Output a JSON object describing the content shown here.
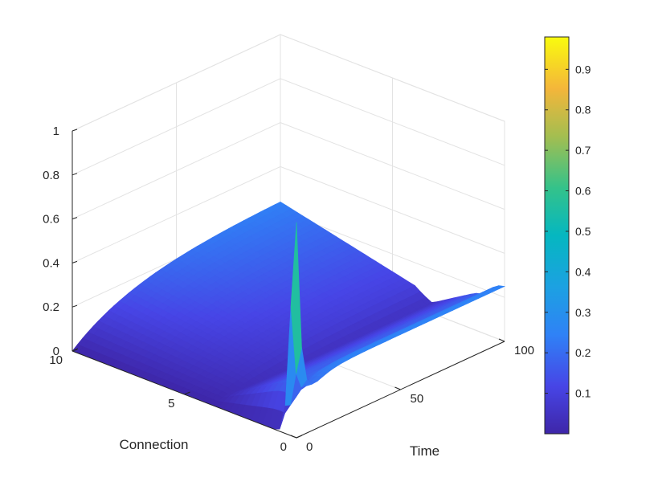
{
  "chart_data": {
    "type": "surface",
    "axes": {
      "x": {
        "label": "Time",
        "range": [
          0,
          100
        ],
        "ticks": [
          0,
          50,
          100
        ]
      },
      "y": {
        "label": "Connection",
        "range": [
          0,
          10
        ],
        "ticks": [
          0,
          5,
          10
        ]
      },
      "z": {
        "range": [
          0,
          1
        ],
        "ticks": [
          0,
          0.2,
          0.4,
          0.6,
          0.8,
          1
        ]
      }
    },
    "grid": true,
    "colormap": "parula",
    "colorbar": {
      "position": "right",
      "range": [
        0,
        0.98
      ],
      "ticks": [
        0.1,
        0.2,
        0.3,
        0.4,
        0.5,
        0.6,
        0.7,
        0.8,
        0.9
      ]
    },
    "surface_features": {
      "peak": {
        "time": 0,
        "connection": 0,
        "value": 0.98
      },
      "plateau_value": 0.25,
      "edge_profile_at_connection_10": [
        {
          "time": 0,
          "value": 0.0
        },
        {
          "time": 10,
          "value": 0.08
        },
        {
          "time": 25,
          "value": 0.15
        },
        {
          "time": 50,
          "value": 0.22
        },
        {
          "time": 100,
          "value": 0.25
        }
      ],
      "edge_profile_at_time_0": [
        {
          "connection": 0,
          "value": 0.98
        },
        {
          "connection": 1,
          "value": 0.05
        },
        {
          "connection": 3,
          "value": 0.0
        },
        {
          "connection": 10,
          "value": 0.0
        }
      ]
    }
  }
}
